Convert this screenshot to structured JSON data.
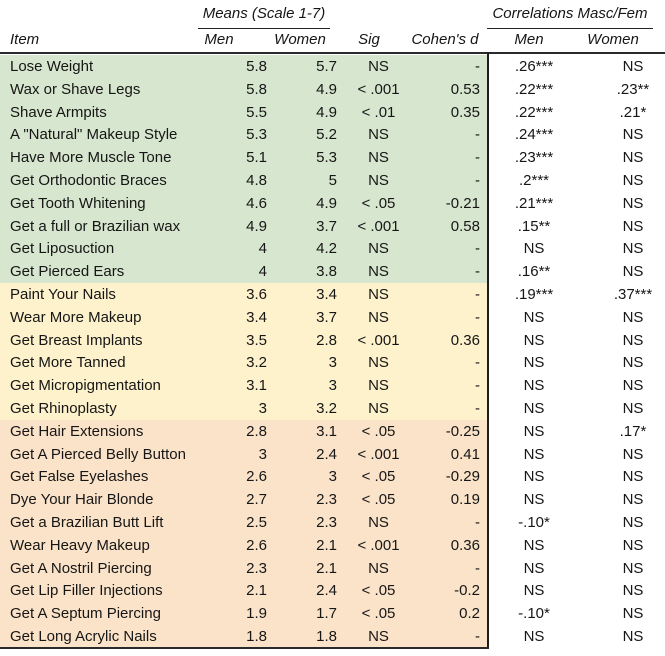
{
  "header": {
    "means_group": "Means (Scale 1-7)",
    "corr_group": "Correlations Masc/Fem",
    "col_item": "Item",
    "col_means_men": "Men",
    "col_means_women": "Women",
    "col_sig": "Sig",
    "col_cohens_d": "Cohen's d",
    "col_corr_men": "Men",
    "col_corr_women": "Women"
  },
  "colors": {
    "band_green": "#d7e6ce",
    "band_yellow": "#fdf2cb",
    "band_peach": "#fbe3c9",
    "rule": "#2a2a2a"
  },
  "chart_data": {
    "type": "table",
    "columns": [
      "Item",
      "Means (Scale 1-7) Men",
      "Means (Scale 1-7) Women",
      "Sig",
      "Cohen's d",
      "Correlations Masc/Fem Men",
      "Correlations Masc/Fem Women"
    ],
    "rows": [
      {
        "item": "Lose Weight",
        "men": "5.8",
        "women": "5.7",
        "sig": "NS",
        "cohen": "-",
        "corr_men": ".26***",
        "corr_women": "NS",
        "band": "green"
      },
      {
        "item": "Wax or Shave Legs",
        "men": "5.8",
        "women": "4.9",
        "sig": "< .001",
        "cohen": "0.53",
        "corr_men": ".22***",
        "corr_women": ".23**",
        "band": "green"
      },
      {
        "item": "Shave Armpits",
        "men": "5.5",
        "women": "4.9",
        "sig": "< .01",
        "cohen": "0.35",
        "corr_men": ".22***",
        "corr_women": ".21*",
        "band": "green"
      },
      {
        "item": "A \"Natural\" Makeup Style",
        "men": "5.3",
        "women": "5.2",
        "sig": "NS",
        "cohen": "-",
        "corr_men": ".24***",
        "corr_women": "NS",
        "band": "green"
      },
      {
        "item": "Have More Muscle Tone",
        "men": "5.1",
        "women": "5.3",
        "sig": "NS",
        "cohen": "-",
        "corr_men": ".23***",
        "corr_women": "NS",
        "band": "green"
      },
      {
        "item": "Get Orthodontic Braces",
        "men": "4.8",
        "women": "5",
        "sig": "NS",
        "cohen": "-",
        "corr_men": ".2***",
        "corr_women": "NS",
        "band": "green"
      },
      {
        "item": "Get Tooth Whitening",
        "men": "4.6",
        "women": "4.9",
        "sig": "< .05",
        "cohen": "-0.21",
        "corr_men": ".21***",
        "corr_women": "NS",
        "band": "green"
      },
      {
        "item": "Get a full or Brazilian wax",
        "men": "4.9",
        "women": "3.7",
        "sig": "< .001",
        "cohen": "0.58",
        "corr_men": ".15**",
        "corr_women": "NS",
        "band": "green"
      },
      {
        "item": "Get Liposuction",
        "men": "4",
        "women": "4.2",
        "sig": "NS",
        "cohen": "-",
        "corr_men": "NS",
        "corr_women": "NS",
        "band": "green"
      },
      {
        "item": "Get Pierced Ears",
        "men": "4",
        "women": "3.8",
        "sig": "NS",
        "cohen": "-",
        "corr_men": ".16**",
        "corr_women": "NS",
        "band": "green"
      },
      {
        "item": "Paint Your Nails",
        "men": "3.6",
        "women": "3.4",
        "sig": "NS",
        "cohen": "-",
        "corr_men": ".19***",
        "corr_women": ".37***",
        "band": "yellow"
      },
      {
        "item": "Wear More Makeup",
        "men": "3.4",
        "women": "3.7",
        "sig": "NS",
        "cohen": "-",
        "corr_men": "NS",
        "corr_women": "NS",
        "band": "yellow"
      },
      {
        "item": "Get Breast Implants",
        "men": "3.5",
        "women": "2.8",
        "sig": "< .001",
        "cohen": "0.36",
        "corr_men": "NS",
        "corr_women": "NS",
        "band": "yellow"
      },
      {
        "item": "Get More Tanned",
        "men": "3.2",
        "women": "3",
        "sig": "NS",
        "cohen": "-",
        "corr_men": "NS",
        "corr_women": "NS",
        "band": "yellow"
      },
      {
        "item": "Get Micropigmentation",
        "men": "3.1",
        "women": "3",
        "sig": "NS",
        "cohen": "-",
        "corr_men": "NS",
        "corr_women": "NS",
        "band": "yellow"
      },
      {
        "item": "Get Rhinoplasty",
        "men": "3",
        "women": "3.2",
        "sig": "NS",
        "cohen": "-",
        "corr_men": "NS",
        "corr_women": "NS",
        "band": "yellow"
      },
      {
        "item": "Get Hair Extensions",
        "men": "2.8",
        "women": "3.1",
        "sig": "< .05",
        "cohen": "-0.25",
        "corr_men": "NS",
        "corr_women": ".17*",
        "band": "peach"
      },
      {
        "item": "Get A Pierced Belly Button",
        "men": "3",
        "women": "2.4",
        "sig": "< .001",
        "cohen": "0.41",
        "corr_men": "NS",
        "corr_women": "NS",
        "band": "peach"
      },
      {
        "item": "Get False Eyelashes",
        "men": "2.6",
        "women": "3",
        "sig": "< .05",
        "cohen": "-0.29",
        "corr_men": "NS",
        "corr_women": "NS",
        "band": "peach"
      },
      {
        "item": "Dye Your Hair Blonde",
        "men": "2.7",
        "women": "2.3",
        "sig": "< .05",
        "cohen": "0.19",
        "corr_men": "NS",
        "corr_women": "NS",
        "band": "peach"
      },
      {
        "item": "Get a Brazilian Butt Lift",
        "men": "2.5",
        "women": "2.3",
        "sig": "NS",
        "cohen": "-",
        "corr_men": "-.10*",
        "corr_women": "NS",
        "band": "peach"
      },
      {
        "item": "Wear Heavy Makeup",
        "men": "2.6",
        "women": "2.1",
        "sig": "< .001",
        "cohen": "0.36",
        "corr_men": "NS",
        "corr_women": "NS",
        "band": "peach"
      },
      {
        "item": "Get A Nostril Piercing",
        "men": "2.3",
        "women": "2.1",
        "sig": "NS",
        "cohen": "-",
        "corr_men": "NS",
        "corr_women": "NS",
        "band": "peach"
      },
      {
        "item": "Get Lip Filler Injections",
        "men": "2.1",
        "women": "2.4",
        "sig": "< .05",
        "cohen": "-0.2",
        "corr_men": "NS",
        "corr_women": "NS",
        "band": "peach"
      },
      {
        "item": "Get A Septum Piercing",
        "men": "1.9",
        "women": "1.7",
        "sig": "< .05",
        "cohen": "0.2",
        "corr_men": "-.10*",
        "corr_women": "NS",
        "band": "peach"
      },
      {
        "item": "Get Long Acrylic Nails",
        "men": "1.8",
        "women": "1.8",
        "sig": "NS",
        "cohen": "-",
        "corr_men": "NS",
        "corr_women": "NS",
        "band": "peach"
      }
    ]
  }
}
